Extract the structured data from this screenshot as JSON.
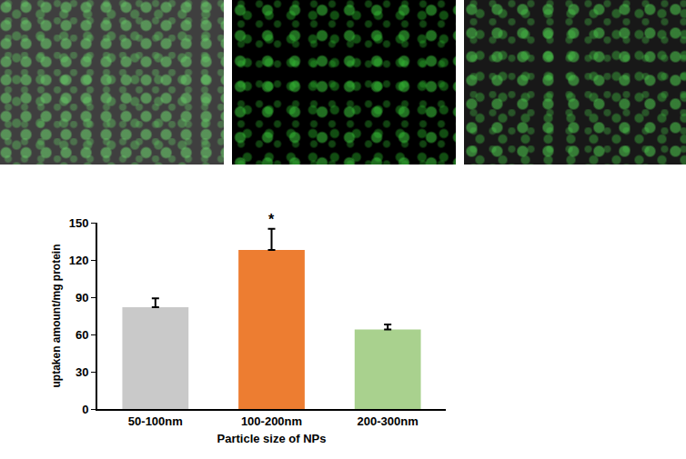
{
  "chart_data": {
    "type": "bar",
    "categories": [
      "50-100nm",
      "100-200nm",
      "200-300nm"
    ],
    "values": [
      82,
      128,
      64
    ],
    "error": [
      7,
      17,
      4
    ],
    "colors": [
      "#c9c9c9",
      "#ed7d31",
      "#a9d18e"
    ],
    "xlabel": "Particle size of NPs",
    "ylabel": "uptaken amount/mg protein",
    "ylim": [
      0,
      150
    ],
    "yticks": [
      0,
      30,
      60,
      90,
      120,
      150
    ],
    "grid": false,
    "annotations": [
      {
        "text": "*",
        "category": "100-200nm"
      }
    ]
  }
}
